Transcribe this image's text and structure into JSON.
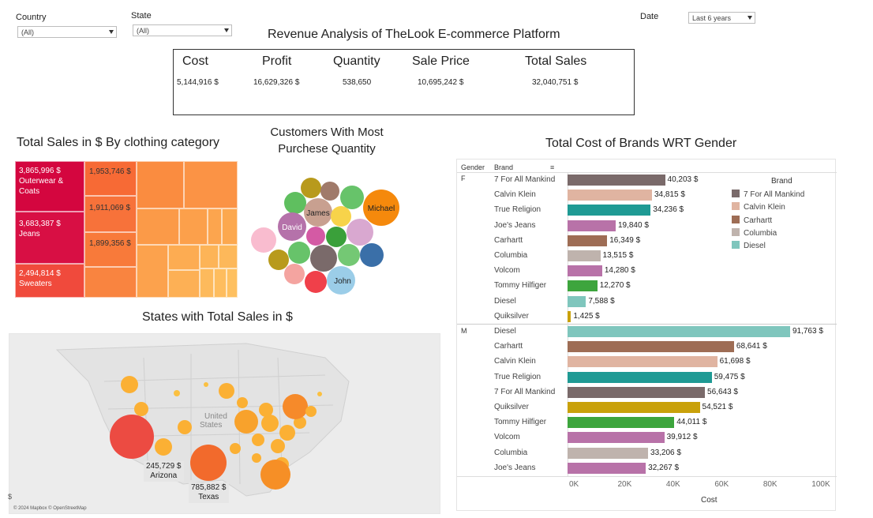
{
  "filters": {
    "country": {
      "label": "Country",
      "value": "(All)"
    },
    "state": {
      "label": "State",
      "value": "(All)"
    },
    "date": {
      "label": "Date",
      "value": "Last 6 years"
    }
  },
  "dashboard_title": "Revenue Analysis of TheLook E-commerce Platform",
  "kpis": [
    {
      "label": "Cost",
      "value": "5,144,916 $"
    },
    {
      "label": "Profit",
      "value": "16,629,326 $"
    },
    {
      "label": "Quantity",
      "value": "538,650"
    },
    {
      "label": "Sale Price",
      "value": "10,695,242 $"
    },
    {
      "label": "Total Sales",
      "value": "32,040,751 $"
    }
  ],
  "treemap": {
    "title": "Total Sales in $ By clothing category",
    "labeled": [
      {
        "value": "3,865,996 $",
        "name": "Outerwear & Coats"
      },
      {
        "value": "3,683,387 $",
        "name": "Jeans"
      },
      {
        "value": "2,494,814 $",
        "name": "Sweaters"
      },
      {
        "value": "1,953,746 $",
        "name": ""
      },
      {
        "value": "1,911,069 $",
        "name": ""
      },
      {
        "value": "1,899,356 $",
        "name": ""
      }
    ]
  },
  "bubbles": {
    "title_line1": "Customers With Most",
    "title_line2": "Purchese Quantity",
    "names": [
      "Michael",
      "James",
      "David",
      "John"
    ]
  },
  "map": {
    "title": "States with Total Sales in $",
    "country_label_1": "United",
    "country_label_2": "States",
    "attribution": "© 2024 Mapbox © OpenStreetMap",
    "edge_glyph": "$",
    "callouts": [
      {
        "value": "245,729 $",
        "state": "Arizona"
      },
      {
        "value": "785,882 $",
        "state": "Texas"
      }
    ]
  },
  "colors": {
    "7 For All Mankind": "#7a6a6a",
    "Calvin Klein": "#e0b4a1",
    "True Religion": "#1f9a94",
    "Joe's Jeans": "#b872a8",
    "Carhartt": "#9e6d55",
    "Columbia": "#bfb3ad",
    "Volcom": "#b872a8",
    "Tommy Hilfiger": "#3da53d",
    "Diesel": "#7fc6bd",
    "Quiksilver": "#c9a10a"
  },
  "chart_data": {
    "type": "bar",
    "title": "Total Cost of Brands WRT Gender",
    "xlabel": "Cost",
    "xlim": [
      0,
      110000
    ],
    "x_ticks": [
      "0K",
      "20K",
      "40K",
      "60K",
      "80K",
      "100K"
    ],
    "header_gender": "Gender",
    "header_brand": "Brand",
    "groups": [
      {
        "gender": "F",
        "rows": [
          {
            "brand": "7 For All Mankind",
            "value": 40203,
            "label": "40,203 $"
          },
          {
            "brand": "Calvin Klein",
            "value": 34815,
            "label": "34,815 $"
          },
          {
            "brand": "True Religion",
            "value": 34236,
            "label": "34,236 $"
          },
          {
            "brand": "Joe's Jeans",
            "value": 19840,
            "label": "19,840 $"
          },
          {
            "brand": "Carhartt",
            "value": 16349,
            "label": "16,349 $"
          },
          {
            "brand": "Columbia",
            "value": 13515,
            "label": "13,515 $"
          },
          {
            "brand": "Volcom",
            "value": 14280,
            "label": "14,280 $"
          },
          {
            "brand": "Tommy Hilfiger",
            "value": 12270,
            "label": "12,270 $"
          },
          {
            "brand": "Diesel",
            "value": 7588,
            "label": "7,588 $"
          },
          {
            "brand": "Quiksilver",
            "value": 1425,
            "label": "1,425 $"
          }
        ]
      },
      {
        "gender": "M",
        "rows": [
          {
            "brand": "Diesel",
            "value": 91763,
            "label": "91,763 $"
          },
          {
            "brand": "Carhartt",
            "value": 68641,
            "label": "68,641 $"
          },
          {
            "brand": "Calvin Klein",
            "value": 61698,
            "label": "61,698 $"
          },
          {
            "brand": "True Religion",
            "value": 59475,
            "label": "59,475 $"
          },
          {
            "brand": "7 For All Mankind",
            "value": 56643,
            "label": "56,643 $"
          },
          {
            "brand": "Quiksilver",
            "value": 54521,
            "label": "54,521 $"
          },
          {
            "brand": "Tommy Hilfiger",
            "value": 44011,
            "label": "44,011 $"
          },
          {
            "brand": "Volcom",
            "value": 39912,
            "label": "39,912 $"
          },
          {
            "brand": "Columbia",
            "value": 33206,
            "label": "33,206 $"
          },
          {
            "brand": "Joe's Jeans",
            "value": 32267,
            "label": "32,267 $"
          }
        ]
      }
    ],
    "legend": {
      "title": "Brand",
      "placement": "top-right",
      "items": [
        "7 For All Mankind",
        "Calvin Klein",
        "Carhartt",
        "Columbia",
        "Diesel"
      ]
    }
  }
}
